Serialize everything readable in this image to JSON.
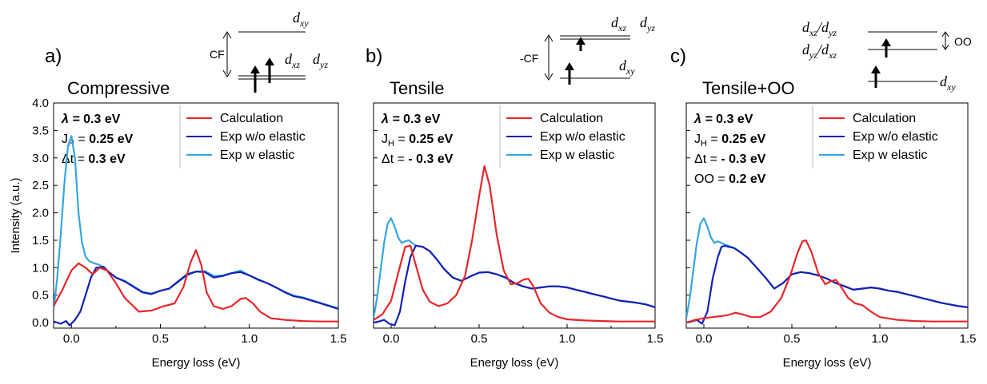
{
  "chart_data": [
    {
      "type": "line",
      "panel_label": "a)",
      "title": "Compressive",
      "xlabel": "Energy loss (eV)",
      "ylabel": "Intensity (a.u.)",
      "xlim": [
        -0.1,
        1.5
      ],
      "ylim": [
        -0.1,
        4.0
      ],
      "xticks": [
        "0.0",
        "0.5",
        "1.0",
        "1.5"
      ],
      "yticks": [
        "0.0",
        "0.5",
        "1.0",
        "1.5",
        "2.0",
        "2.5",
        "3.0",
        "3.5",
        "4.0"
      ],
      "params": [
        {
          "label": "λ = ",
          "value": "0.3 eV"
        },
        {
          "label": "J",
          "sub": "H",
          "label2": " = ",
          "value": "0.25 eV"
        },
        {
          "label": "Δt = ",
          "value": "0.3 eV"
        }
      ],
      "legend": [
        "Calculation",
        "Exp w/o elastic",
        "Exp w elastic"
      ],
      "series": [
        {
          "name": "Calculation",
          "color": "#e8262a",
          "x": [
            -0.1,
            -0.05,
            0.0,
            0.04,
            0.08,
            0.12,
            0.16,
            0.2,
            0.25,
            0.3,
            0.38,
            0.45,
            0.52,
            0.58,
            0.63,
            0.67,
            0.7,
            0.73,
            0.76,
            0.8,
            0.85,
            0.9,
            0.95,
            0.98,
            1.02,
            1.06,
            1.12,
            1.2,
            1.3,
            1.4,
            1.5
          ],
          "y": [
            0.3,
            0.6,
            0.95,
            1.08,
            1.0,
            0.88,
            1.0,
            0.95,
            0.72,
            0.45,
            0.2,
            0.22,
            0.3,
            0.35,
            0.65,
            1.1,
            1.32,
            1.05,
            0.55,
            0.3,
            0.25,
            0.3,
            0.43,
            0.45,
            0.35,
            0.2,
            0.08,
            0.05,
            0.03,
            0.02,
            0.02
          ]
        },
        {
          "name": "Exp w/o elastic",
          "color": "#1520b5",
          "x": [
            -0.1,
            -0.06,
            -0.03,
            -0.01,
            0.02,
            0.05,
            0.08,
            0.11,
            0.14,
            0.18,
            0.21,
            0.25,
            0.3,
            0.35,
            0.4,
            0.45,
            0.5,
            0.55,
            0.6,
            0.65,
            0.7,
            0.75,
            0.8,
            0.85,
            0.9,
            0.95,
            1.0,
            1.05,
            1.1,
            1.15,
            1.2,
            1.25,
            1.3,
            1.35,
            1.4,
            1.45,
            1.5
          ],
          "y": [
            0.02,
            -0.02,
            0.03,
            -0.05,
            0.05,
            0.2,
            0.5,
            0.82,
            1.0,
            1.02,
            0.92,
            0.82,
            0.75,
            0.65,
            0.55,
            0.52,
            0.58,
            0.62,
            0.75,
            0.88,
            0.93,
            0.92,
            0.82,
            0.85,
            0.9,
            0.92,
            0.86,
            0.78,
            0.72,
            0.64,
            0.55,
            0.48,
            0.45,
            0.4,
            0.35,
            0.3,
            0.25
          ]
        },
        {
          "name": "Exp w elastic",
          "color": "#35a6de",
          "x": [
            -0.1,
            -0.08,
            -0.06,
            -0.04,
            -0.02,
            0.0,
            0.02,
            0.04,
            0.06,
            0.08,
            0.1,
            0.13,
            0.16,
            0.2,
            0.25,
            0.3,
            0.35,
            0.4,
            0.45,
            0.5,
            0.55,
            0.6,
            0.65,
            0.7,
            0.75,
            0.8,
            0.85,
            0.9,
            0.95,
            1.0,
            1.05,
            1.1,
            1.15,
            1.2,
            1.25,
            1.3,
            1.35,
            1.4,
            1.45,
            1.5
          ],
          "y": [
            0.25,
            0.8,
            1.6,
            2.5,
            3.2,
            3.4,
            3.0,
            2.0,
            1.45,
            1.2,
            1.12,
            1.08,
            1.05,
            0.95,
            0.82,
            0.76,
            0.66,
            0.56,
            0.53,
            0.58,
            0.62,
            0.74,
            0.86,
            0.93,
            0.94,
            0.85,
            0.86,
            0.9,
            0.95,
            0.86,
            0.79,
            0.72,
            0.64,
            0.56,
            0.49,
            0.46,
            0.41,
            0.36,
            0.31,
            0.26
          ]
        }
      ]
    },
    {
      "type": "line",
      "panel_label": "b)",
      "title": "Tensile",
      "xlabel": "Energy loss (eV)",
      "ylabel": "",
      "xlim": [
        -0.1,
        1.5
      ],
      "ylim": [
        -0.1,
        4.0
      ],
      "xticks": [
        "0.0",
        "0.5",
        "1.0",
        "1.5"
      ],
      "yticks": [],
      "params": [
        {
          "label": "λ = ",
          "value": "0.3 eV"
        },
        {
          "label": "J",
          "sub": "H",
          "label2": " = ",
          "value": "0.25 eV"
        },
        {
          "label": "Δt = ",
          "value": "- 0.3 eV"
        }
      ],
      "legend": [
        "Calculation",
        "Exp w/o elastic",
        "Exp w elastic"
      ],
      "series": [
        {
          "name": "Calculation",
          "color": "#e8262a",
          "x": [
            -0.1,
            -0.05,
            0.0,
            0.04,
            0.08,
            0.11,
            0.14,
            0.18,
            0.22,
            0.27,
            0.32,
            0.37,
            0.42,
            0.46,
            0.5,
            0.53,
            0.56,
            0.6,
            0.64,
            0.68,
            0.72,
            0.75,
            0.78,
            0.81,
            0.85,
            0.9,
            0.95,
            1.0,
            1.1,
            1.2,
            1.3,
            1.4,
            1.5
          ],
          "y": [
            0.05,
            0.15,
            0.4,
            0.9,
            1.38,
            1.4,
            1.05,
            0.6,
            0.38,
            0.3,
            0.35,
            0.5,
            0.85,
            1.5,
            2.3,
            2.85,
            2.5,
            1.6,
            0.95,
            0.7,
            0.72,
            0.78,
            0.8,
            0.65,
            0.35,
            0.18,
            0.1,
            0.06,
            0.04,
            0.03,
            0.02,
            0.02,
            0.02
          ]
        },
        {
          "name": "Exp w/o elastic",
          "color": "#1520b5",
          "x": [
            -0.1,
            -0.07,
            -0.04,
            -0.01,
            0.02,
            0.05,
            0.08,
            0.11,
            0.14,
            0.18,
            0.22,
            0.26,
            0.3,
            0.35,
            0.4,
            0.45,
            0.5,
            0.55,
            0.6,
            0.65,
            0.7,
            0.75,
            0.8,
            0.85,
            0.9,
            0.95,
            1.0,
            1.05,
            1.1,
            1.15,
            1.2,
            1.25,
            1.3,
            1.35,
            1.4,
            1.45,
            1.5
          ],
          "y": [
            0.0,
            0.02,
            0.05,
            -0.02,
            -0.05,
            0.2,
            0.75,
            1.2,
            1.4,
            1.38,
            1.3,
            1.15,
            0.98,
            0.82,
            0.76,
            0.84,
            0.91,
            0.92,
            0.88,
            0.82,
            0.72,
            0.66,
            0.62,
            0.64,
            0.66,
            0.66,
            0.64,
            0.6,
            0.56,
            0.52,
            0.48,
            0.44,
            0.4,
            0.38,
            0.36,
            0.33,
            0.28
          ]
        },
        {
          "name": "Exp w elastic",
          "color": "#35a6de",
          "x": [
            -0.1,
            -0.08,
            -0.06,
            -0.04,
            -0.02,
            0.0,
            0.02,
            0.04,
            0.06,
            0.08,
            0.1,
            0.12,
            0.14,
            0.18,
            0.22,
            0.26,
            0.3,
            0.35,
            0.4,
            0.45,
            0.5,
            0.55,
            0.6,
            0.65,
            0.7,
            0.75,
            0.8,
            0.85,
            0.9,
            0.95,
            1.0,
            1.05,
            1.1,
            1.15,
            1.2,
            1.25,
            1.3,
            1.35,
            1.4,
            1.45,
            1.5
          ],
          "y": [
            0.08,
            0.45,
            0.95,
            1.45,
            1.8,
            1.9,
            1.75,
            1.55,
            1.45,
            1.48,
            1.5,
            1.45,
            1.4,
            1.38,
            1.3,
            1.15,
            0.98,
            0.82,
            0.76,
            0.84,
            0.91,
            0.92,
            0.88,
            0.82,
            0.72,
            0.66,
            0.62,
            0.64,
            0.66,
            0.66,
            0.64,
            0.6,
            0.56,
            0.52,
            0.48,
            0.44,
            0.4,
            0.38,
            0.36,
            0.33,
            0.28
          ]
        }
      ]
    },
    {
      "type": "line",
      "panel_label": "c)",
      "title": "Tensile+OO",
      "xlabel": "Energy loss (eV)",
      "ylabel": "",
      "xlim": [
        -0.1,
        1.5
      ],
      "ylim": [
        -0.1,
        4.0
      ],
      "xticks": [
        "0.0",
        "0.5",
        "1.0",
        "1.5"
      ],
      "yticks": [],
      "params": [
        {
          "label": "λ = ",
          "value": "0.3 eV"
        },
        {
          "label": "J",
          "sub": "H",
          "label2": " = ",
          "value": "0.25 eV"
        },
        {
          "label": "Δt = ",
          "value": "- 0.3 eV"
        },
        {
          "label": "OO = ",
          "value": "0.2 eV"
        }
      ],
      "legend": [
        "Calculation",
        "Exp w/o elastic",
        "Exp w elastic"
      ],
      "series": [
        {
          "name": "Calculation",
          "color": "#e8262a",
          "x": [
            -0.1,
            -0.05,
            0.0,
            0.05,
            0.1,
            0.14,
            0.18,
            0.22,
            0.27,
            0.32,
            0.38,
            0.44,
            0.49,
            0.53,
            0.56,
            0.58,
            0.61,
            0.65,
            0.69,
            0.72,
            0.75,
            0.78,
            0.82,
            0.86,
            0.9,
            0.95,
            1.0,
            1.1,
            1.2,
            1.3,
            1.4,
            1.5
          ],
          "y": [
            0.0,
            0.05,
            0.08,
            0.1,
            0.12,
            0.14,
            0.18,
            0.15,
            0.1,
            0.1,
            0.2,
            0.45,
            0.85,
            1.25,
            1.48,
            1.5,
            1.3,
            0.9,
            0.7,
            0.75,
            0.78,
            0.65,
            0.45,
            0.35,
            0.32,
            0.2,
            0.1,
            0.05,
            0.03,
            0.02,
            0.02,
            0.02
          ]
        },
        {
          "name": "Exp w/o elastic",
          "color": "#1520b5",
          "x": [
            -0.1,
            -0.07,
            -0.04,
            -0.01,
            0.02,
            0.05,
            0.08,
            0.1,
            0.12,
            0.14,
            0.17,
            0.2,
            0.25,
            0.3,
            0.35,
            0.4,
            0.45,
            0.5,
            0.55,
            0.6,
            0.65,
            0.7,
            0.75,
            0.8,
            0.85,
            0.9,
            0.95,
            1.0,
            1.05,
            1.1,
            1.15,
            1.2,
            1.25,
            1.3,
            1.35,
            1.4,
            1.45,
            1.5
          ],
          "y": [
            0.0,
            0.02,
            0.05,
            -0.02,
            0.2,
            0.8,
            1.2,
            1.38,
            1.4,
            1.38,
            1.36,
            1.3,
            1.18,
            1.0,
            0.82,
            0.62,
            0.72,
            0.88,
            0.92,
            0.9,
            0.86,
            0.8,
            0.72,
            0.66,
            0.6,
            0.62,
            0.64,
            0.62,
            0.58,
            0.56,
            0.52,
            0.48,
            0.44,
            0.4,
            0.36,
            0.33,
            0.3,
            0.28
          ]
        },
        {
          "name": "Exp w elastic",
          "color": "#35a6de",
          "x": [
            -0.1,
            -0.08,
            -0.06,
            -0.04,
            -0.02,
            0.0,
            0.02,
            0.04,
            0.06,
            0.08,
            0.1,
            0.12,
            0.14,
            0.17,
            0.2,
            0.25,
            0.3,
            0.35,
            0.4,
            0.45,
            0.5,
            0.55,
            0.6,
            0.65,
            0.7,
            0.75,
            0.8,
            0.85,
            0.9,
            0.95,
            1.0,
            1.05,
            1.1,
            1.15,
            1.2,
            1.25,
            1.3,
            1.35,
            1.4,
            1.45,
            1.5
          ],
          "y": [
            0.08,
            0.45,
            0.95,
            1.45,
            1.8,
            1.9,
            1.75,
            1.55,
            1.45,
            1.48,
            1.45,
            1.42,
            1.4,
            1.36,
            1.3,
            1.18,
            1.0,
            0.82,
            0.62,
            0.72,
            0.88,
            0.92,
            0.9,
            0.86,
            0.8,
            0.72,
            0.66,
            0.6,
            0.62,
            0.64,
            0.62,
            0.58,
            0.56,
            0.52,
            0.48,
            0.44,
            0.4,
            0.36,
            0.33,
            0.3,
            0.28
          ]
        }
      ]
    }
  ],
  "diagrams": [
    {
      "cf_label": "CF",
      "top": "xy",
      "bottom": [
        "xz",
        "yz"
      ]
    },
    {
      "cf_label": "-CF",
      "top": [
        "xz",
        "yz"
      ],
      "bottom": "xy"
    },
    {
      "levels": [
        "xz/dyz",
        "yz/dxz",
        "xy"
      ],
      "oo_label": "OO"
    }
  ]
}
